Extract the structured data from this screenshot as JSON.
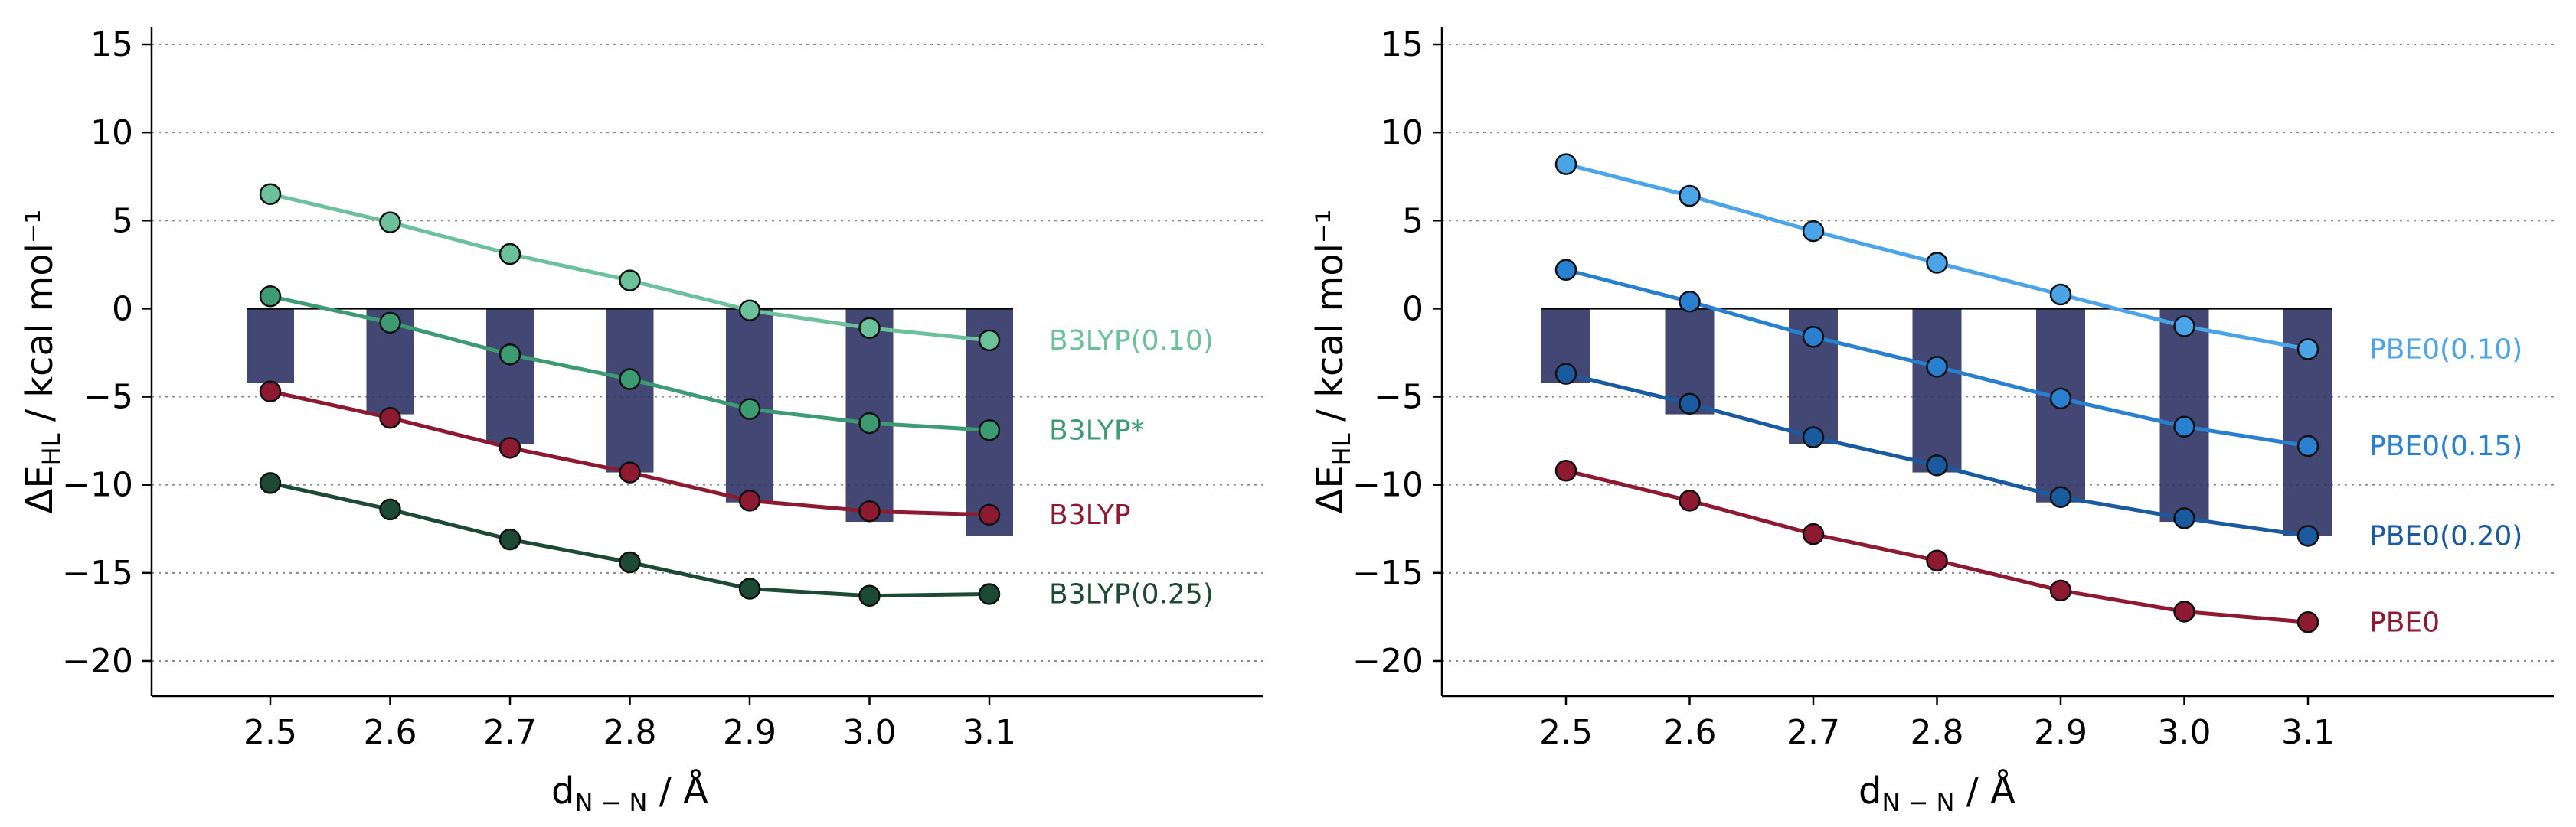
{
  "chart_data": [
    {
      "type": "bar",
      "xlabel": {
        "main": "d",
        "sub": "N − N",
        "suffix": " / Å"
      },
      "ylabel": {
        "main": "ΔE",
        "sub": "HL",
        "suffix": " / kcal mol⁻¹"
      },
      "x": [
        2.5,
        2.6,
        2.7,
        2.8,
        2.9,
        3.0,
        3.1
      ],
      "xtick_labels": [
        "2.5",
        "2.6",
        "2.7",
        "2.8",
        "2.9",
        "3.0",
        "3.1"
      ],
      "ylim": [
        -22,
        16
      ],
      "yticks": [
        15,
        10,
        5,
        0,
        -5,
        -10,
        -15,
        -20
      ],
      "ytick_labels": [
        "15",
        "10",
        "5",
        "0",
        "−5",
        "−10",
        "−15",
        "−20"
      ],
      "grid": "horizontal dotted",
      "bars": {
        "values": [
          -4.2,
          -6.0,
          -7.7,
          -9.3,
          -11.0,
          -12.1,
          -12.9
        ],
        "color": "#2e3464"
      },
      "series": [
        {
          "name": "B3LYP(0.10)",
          "values": [
            6.5,
            4.9,
            3.1,
            1.6,
            -0.1,
            -1.1,
            -1.8
          ],
          "color": "#6cc19b"
        },
        {
          "name": "B3LYP*",
          "values": [
            0.7,
            -0.8,
            -2.6,
            -4.0,
            -5.7,
            -6.5,
            -6.9
          ],
          "color": "#3c9b72"
        },
        {
          "name": "B3LYP",
          "values": [
            -4.7,
            -6.2,
            -7.9,
            -9.3,
            -10.9,
            -11.5,
            -11.7
          ],
          "color": "#8e1a32"
        },
        {
          "name": "B3LYP(0.25)",
          "values": [
            -9.9,
            -11.4,
            -13.1,
            -14.4,
            -15.9,
            -16.3,
            -16.2
          ],
          "color": "#1d4a35"
        }
      ]
    },
    {
      "type": "bar",
      "xlabel": {
        "main": "d",
        "sub": "N − N",
        "suffix": " / Å"
      },
      "ylabel": {
        "main": "ΔE",
        "sub": "HL",
        "suffix": " / kcal mol⁻¹"
      },
      "x": [
        2.5,
        2.6,
        2.7,
        2.8,
        2.9,
        3.0,
        3.1
      ],
      "xtick_labels": [
        "2.5",
        "2.6",
        "2.7",
        "2.8",
        "2.9",
        "3.0",
        "3.1"
      ],
      "ylim": [
        -22,
        16
      ],
      "yticks": [
        15,
        10,
        5,
        0,
        -5,
        -10,
        -15,
        -20
      ],
      "ytick_labels": [
        "15",
        "10",
        "5",
        "0",
        "−5",
        "−10",
        "−15",
        "−20"
      ],
      "grid": "horizontal dotted",
      "bars": {
        "values": [
          -4.2,
          -6.0,
          -7.7,
          -9.3,
          -11.0,
          -12.1,
          -12.9
        ],
        "color": "#2e3464"
      },
      "series": [
        {
          "name": "PBE0(0.10)",
          "values": [
            8.2,
            6.4,
            4.4,
            2.6,
            0.8,
            -1.0,
            -2.3
          ],
          "color": "#4ba3e8"
        },
        {
          "name": "PBE0(0.15)",
          "values": [
            2.2,
            0.4,
            -1.6,
            -3.3,
            -5.1,
            -6.7,
            -7.8
          ],
          "color": "#2a80d0"
        },
        {
          "name": "PBE0(0.20)",
          "values": [
            -3.7,
            -5.4,
            -7.3,
            -8.9,
            -10.7,
            -11.9,
            -12.9
          ],
          "color": "#1a5a9e"
        },
        {
          "name": "PBE0",
          "values": [
            -9.2,
            -10.9,
            -12.8,
            -14.3,
            -16.0,
            -17.2,
            -17.8
          ],
          "color": "#8e1a32"
        }
      ]
    }
  ]
}
